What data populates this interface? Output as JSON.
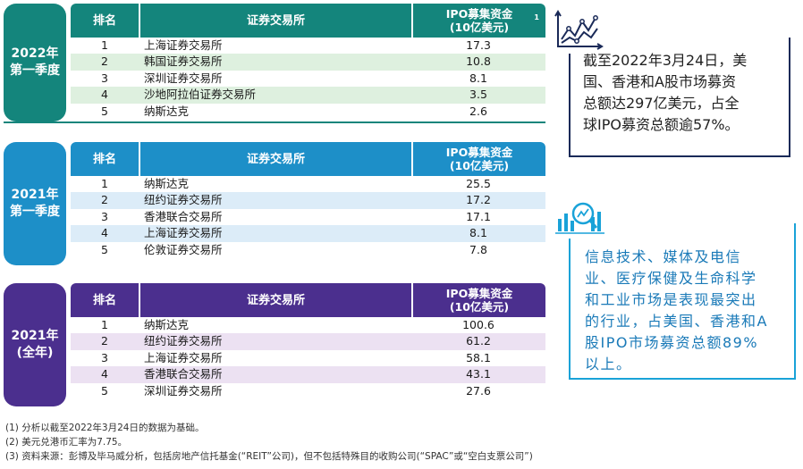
{
  "headers": {
    "rank": "排名",
    "exchange": "证券交易所",
    "ipo_line1": "IPO募集资金",
    "ipo_line2": "(10亿美元)",
    "ipo_sup": "1"
  },
  "blocks": [
    {
      "label_line1": "2022年",
      "label_line2": "第一季度",
      "rows": [
        {
          "rank": "1",
          "exchange": "上海证券交易所",
          "value": "17.3"
        },
        {
          "rank": "2",
          "exchange": "韩国证券交易所",
          "value": "10.8"
        },
        {
          "rank": "3",
          "exchange": "深圳证券交易所",
          "value": "8.1"
        },
        {
          "rank": "4",
          "exchange": "沙地阿拉伯证券交易所",
          "value": "3.5"
        },
        {
          "rank": "5",
          "exchange": "纳斯达克",
          "value": "2.6"
        }
      ]
    },
    {
      "label_line1": "2021年",
      "label_line2": "第一季度",
      "rows": [
        {
          "rank": "1",
          "exchange": "纳斯达克",
          "value": "25.5"
        },
        {
          "rank": "2",
          "exchange": "纽约证券交易所",
          "value": "17.2"
        },
        {
          "rank": "3",
          "exchange": "香港联合交易所",
          "value": "17.1"
        },
        {
          "rank": "4",
          "exchange": "上海证券交易所",
          "value": "8.1"
        },
        {
          "rank": "5",
          "exchange": "伦敦证券交易所",
          "value": "7.8"
        }
      ]
    },
    {
      "label_line1": "2021年",
      "label_line2": "(全年)",
      "rows": [
        {
          "rank": "1",
          "exchange": "纳斯达克",
          "value": "100.6"
        },
        {
          "rank": "2",
          "exchange": "纽约证券交易所",
          "value": "61.2"
        },
        {
          "rank": "3",
          "exchange": "上海证券交易所",
          "value": "58.1"
        },
        {
          "rank": "4",
          "exchange": "香港联合交易所",
          "value": "43.1"
        },
        {
          "rank": "5",
          "exchange": "深圳证券交易所",
          "value": "27.6"
        }
      ]
    }
  ],
  "panels": {
    "p1_lines": [
      "截至2022年3月24日，美",
      "国、香港和A股市场募资",
      "总额达297亿美元，占全",
      "球IPO募资总额逾57%。"
    ],
    "p2_lines": [
      "信息技术、媒体及电信",
      "业、医疗保健及生命科学",
      "和工业市场是表现最突出",
      "的行业，占美国、香港和A",
      "股IPO市场募资总额89%",
      "以上。"
    ]
  },
  "notes": [
    "(1) 分析以截至2022年3月24日的数据为基础。",
    "(2) 美元兑港币汇率为7.75。",
    "(3) 资料来源：彭博及毕马威分析，包括房地产信托基金(“REIT”公司)，但不包括特殊目的收购公司(“SPAC”或“空白支票公司”)"
  ],
  "colors": {
    "teal": "#14857c",
    "blue": "#1d8fc8",
    "purple": "#4b2f8e",
    "navy": "#1a2a58",
    "cyan": "#19a2d8"
  },
  "icons": [
    "line-chart-icon",
    "magnifier-chart-icon"
  ]
}
